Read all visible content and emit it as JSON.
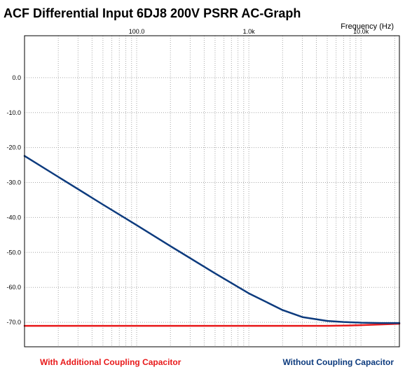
{
  "chart_data": {
    "type": "line",
    "title": "ACF Differential Input 6DJ8 200V PSRR AC-Graph",
    "xlabel": "Frequency  (Hz)",
    "ylabel": "",
    "x_scale": "log",
    "xlim": [
      10,
      22000
    ],
    "ylim": [
      -77,
      12
    ],
    "x_ticks": [
      {
        "value": 100,
        "label": "100.0"
      },
      {
        "value": 1000,
        "label": "1.0k"
      },
      {
        "value": 10000,
        "label": "10.0k"
      }
    ],
    "y_ticks": [
      {
        "value": 0,
        "label": "0.0"
      },
      {
        "value": -10,
        "label": "-10.0"
      },
      {
        "value": -20,
        "label": "-20.0"
      },
      {
        "value": -30,
        "label": "-30.0"
      },
      {
        "value": -40,
        "label": "-40.0"
      },
      {
        "value": -50,
        "label": "-50.0"
      },
      {
        "value": -60,
        "label": "-60.0"
      },
      {
        "value": -70,
        "label": "-70.0"
      }
    ],
    "grid": true,
    "legend_position": "bottom",
    "series": [
      {
        "name": "With Additional Coupling Capacitor",
        "color": "#e8191a",
        "x": [
          10,
          100,
          1000,
          5000,
          8000,
          15000,
          22000
        ],
        "y": [
          -71.0,
          -71.0,
          -71.0,
          -71.0,
          -70.9,
          -70.6,
          -70.4
        ]
      },
      {
        "name": "Without Coupling Capacitor",
        "color": "#0d3b7e",
        "x": [
          10,
          20,
          50,
          100,
          200,
          500,
          1000,
          2000,
          3000,
          5000,
          7000,
          10000,
          15000,
          22000
        ],
        "y": [
          -22.4,
          -28.4,
          -36.3,
          -42.2,
          -48.2,
          -56.0,
          -61.7,
          -66.5,
          -68.5,
          -69.6,
          -69.9,
          -70.1,
          -70.2,
          -70.2
        ]
      }
    ]
  }
}
